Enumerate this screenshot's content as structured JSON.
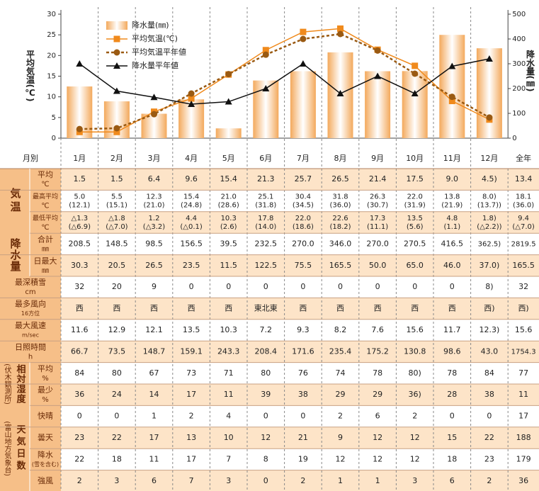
{
  "chart_data": {
    "type": "combo",
    "categories": [
      "1月",
      "2月",
      "3月",
      "4月",
      "5月",
      "6月",
      "7月",
      "8月",
      "9月",
      "10月",
      "11月",
      "12月"
    ],
    "ylabel": "平均気温(℃)",
    "y2label": "降水量(㎜)",
    "ylim": [
      0,
      30
    ],
    "yticks": [
      0,
      5,
      10,
      15,
      20,
      25,
      30
    ],
    "y2lim": [
      0,
      500
    ],
    "y2ticks": [
      0,
      100,
      200,
      300,
      400,
      500
    ],
    "series": [
      {
        "name": "降水量(㎜)",
        "type": "bar",
        "axis": "y2",
        "color": "#f3a95c",
        "values": [
          208.5,
          148.5,
          98.5,
          156.5,
          39.5,
          232.5,
          270,
          346,
          270,
          270.5,
          416.5,
          362.5
        ]
      },
      {
        "name": "平均気温(℃)",
        "type": "line",
        "marker": "square",
        "color": "#f08a1c",
        "values": [
          1.5,
          1.5,
          6.4,
          9.6,
          15.4,
          21.3,
          25.7,
          26.5,
          21.4,
          17.5,
          9.0,
          4.5
        ]
      },
      {
        "name": "平均気温平年値",
        "type": "line",
        "marker": "circle",
        "dashed": true,
        "color": "#9a5a12",
        "values": [
          2.2,
          2.4,
          5.8,
          10.8,
          15.5,
          20.2,
          24.0,
          25.2,
          21.2,
          15.6,
          10.0,
          5.0
        ]
      },
      {
        "name": "降水量平年値",
        "type": "line",
        "marker": "triangle",
        "axis": "y2",
        "color": "#111111",
        "values": [
          300,
          190,
          165,
          137,
          147,
          200,
          300,
          180,
          250,
          180,
          290,
          320
        ]
      }
    ]
  },
  "table": {
    "header": {
      "label": "月別",
      "total": "全年"
    },
    "groups": [
      {
        "title": "気温",
        "rows": [
          {
            "label": "平均",
            "unit": "℃",
            "cells": [
              "1.5",
              "1.5",
              "6.4",
              "9.6",
              "15.4",
              "21.3",
              "25.7",
              "26.5",
              "21.4",
              "17.5",
              "9.0",
              "4.5)",
              "13.4"
            ]
          },
          {
            "label": "最高平均",
            "unit": "℃",
            "cells": [
              [
                "5.0",
                "(12.1)"
              ],
              [
                "5.5",
                "(15.1)"
              ],
              [
                "12.3",
                "(21.0)"
              ],
              [
                "15.4",
                "(24.8)"
              ],
              [
                "21.0",
                "(28.6)"
              ],
              [
                "25.1",
                "(31.8)"
              ],
              [
                "30.4",
                "(34.5)"
              ],
              [
                "31.8",
                "(36.0)"
              ],
              [
                "26.3",
                "(30.7)"
              ],
              [
                "22.0",
                "(31.9)"
              ],
              [
                "13.8",
                "(21.9)"
              ],
              [
                "8.0)",
                "(13.7))"
              ],
              [
                "18.1",
                "(36.0)"
              ]
            ]
          },
          {
            "label": "最低平均",
            "unit": "℃",
            "cells": [
              [
                "△1.3",
                "(△6.9)"
              ],
              [
                "△1.8",
                "(△7.0)"
              ],
              [
                "1.2",
                "(△3.2)"
              ],
              [
                "4.4",
                "(△0.1)"
              ],
              [
                "10.3",
                "(2.6)"
              ],
              [
                "17.8",
                "(14.0)"
              ],
              [
                "22.0",
                "(18.6)"
              ],
              [
                "22.6",
                "(18.2)"
              ],
              [
                "17.3",
                "(11.1)"
              ],
              [
                "13.5",
                "(5.6)"
              ],
              [
                "4.8",
                "(1.1)"
              ],
              [
                "1.8)",
                "(△2.2))"
              ],
              [
                "9.4",
                "(△7.0)"
              ]
            ]
          }
        ]
      },
      {
        "title": "降水量",
        "rows": [
          {
            "label": "合計",
            "unit": "㎜",
            "cells": [
              "208.5",
              "148.5",
              "98.5",
              "156.5",
              "39.5",
              "232.5",
              "270.0",
              "346.0",
              "270.0",
              "270.5",
              "416.5",
              "362.5)",
              "2819.5"
            ]
          },
          {
            "label": "日最大",
            "unit": "㎜",
            "cells": [
              "30.3",
              "20.5",
              "26.5",
              "23.5",
              "11.5",
              "122.5",
              "75.5",
              "165.5",
              "50.0",
              "65.0",
              "46.0",
              "37.0)",
              "165.5"
            ]
          }
        ]
      },
      {
        "rows": [
          {
            "label": "最深積雪",
            "unit": "cm",
            "cells": [
              "32",
              "20",
              "9",
              "0",
              "0",
              "0",
              "0",
              "0",
              "0",
              "0",
              "0",
              "8)",
              "32"
            ]
          }
        ]
      },
      {
        "rows": [
          {
            "label": "最多風向",
            "unit": "16方位",
            "cells": [
              "西",
              "西",
              "西",
              "西",
              "西",
              "東北東",
              "西",
              "西",
              "西",
              "西",
              "西",
              "西)",
              "西)"
            ]
          }
        ]
      },
      {
        "rows": [
          {
            "label": "最大風速",
            "unit": "m/sec",
            "cells": [
              "11.6",
              "12.9",
              "12.1",
              "13.5",
              "10.3",
              "7.2",
              "9.3",
              "8.2",
              "7.6",
              "15.6",
              "11.7",
              "12.3)",
              "15.6"
            ]
          }
        ]
      },
      {
        "rows": [
          {
            "label": "日照時間",
            "unit": "h",
            "cells": [
              "66.7",
              "73.5",
              "148.7",
              "159.1",
              "243.3",
              "208.4",
              "171.6",
              "235.4",
              "175.2",
              "130.8",
              "98.6",
              "43.0",
              "1754.3"
            ]
          }
        ]
      },
      {
        "title": "相対湿度",
        "note": "(伏木観測所)",
        "rows": [
          {
            "label": "平均",
            "unit": "%",
            "cells": [
              "84",
              "80",
              "67",
              "73",
              "71",
              "80",
              "76",
              "74",
              "78",
              "80)",
              "78",
              "84",
              "77"
            ]
          },
          {
            "label": "最少",
            "unit": "%",
            "cells": [
              "36",
              "24",
              "14",
              "17",
              "11",
              "39",
              "38",
              "29",
              "29",
              "36)",
              "28",
              "38",
              "11"
            ]
          }
        ]
      },
      {
        "title": "天気日数",
        "note": "(富山地方気象台)",
        "rows": [
          {
            "label": "快晴",
            "cells": [
              "0",
              "0",
              "1",
              "2",
              "4",
              "0",
              "0",
              "2",
              "6",
              "2",
              "0",
              "0",
              "17"
            ]
          },
          {
            "label": "曇天",
            "cells": [
              "23",
              "22",
              "17",
              "13",
              "10",
              "12",
              "21",
              "9",
              "12",
              "12",
              "15",
              "22",
              "188"
            ]
          },
          {
            "label": "降水",
            "unit": "(雪を含む)",
            "cells": [
              "22",
              "18",
              "11",
              "17",
              "7",
              "8",
              "19",
              "12",
              "12",
              "12",
              "18",
              "23",
              "179"
            ]
          },
          {
            "label": "強風",
            "cells": [
              "2",
              "3",
              "6",
              "7",
              "3",
              "0",
              "2",
              "1",
              "1",
              "3",
              "6",
              "2",
              "36"
            ]
          }
        ]
      }
    ]
  }
}
